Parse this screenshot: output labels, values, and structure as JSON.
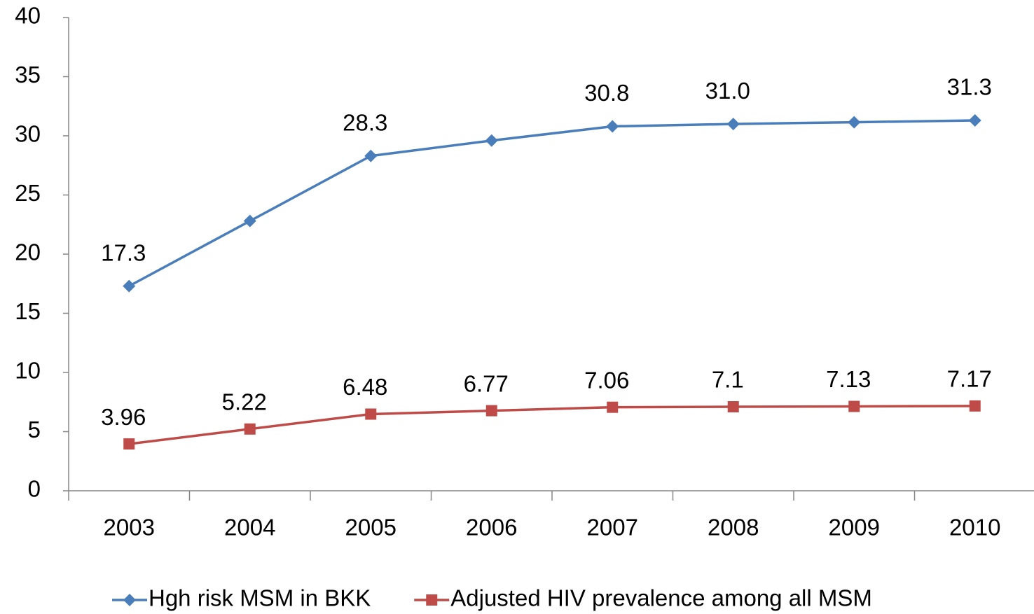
{
  "chart_data": {
    "type": "line",
    "categories": [
      "2003",
      "2004",
      "2005",
      "2006",
      "2007",
      "2008",
      "2009",
      "2010"
    ],
    "series": [
      {
        "name": "Hgh risk MSM in BKK",
        "color": "#4a7ebb",
        "marker": "diamond",
        "values": [
          17.3,
          22.8,
          28.3,
          29.6,
          30.8,
          31.0,
          31.15,
          31.3
        ],
        "value_labels": [
          "17.3",
          null,
          "28.3",
          null,
          "30.8",
          "31.0",
          null,
          "31.3"
        ]
      },
      {
        "name": "Adjusted HIV prevalence among all MSM",
        "color": "#be4b48",
        "marker": "square",
        "values": [
          3.96,
          5.22,
          6.48,
          6.77,
          7.06,
          7.1,
          7.13,
          7.17
        ]
      }
    ],
    "ylim": [
      0,
      40
    ],
    "yticks": [
      0,
      5,
      10,
      15,
      20,
      25,
      30,
      35,
      40
    ],
    "grid": false,
    "legend": "bottom"
  }
}
